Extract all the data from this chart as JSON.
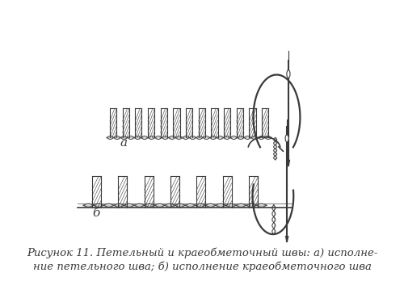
{
  "caption_line1": "Рисунок 11. Петельный и краеобметочный швы: а) исполне-",
  "caption_line2": "ние петельного шва; б) исполнение краеобметочного шва",
  "label_a": "а",
  "label_b": "б",
  "bg_color": "#ffffff",
  "line_color": "#3a3a3a",
  "caption_fontsize": 9.5,
  "label_fontsize": 11
}
